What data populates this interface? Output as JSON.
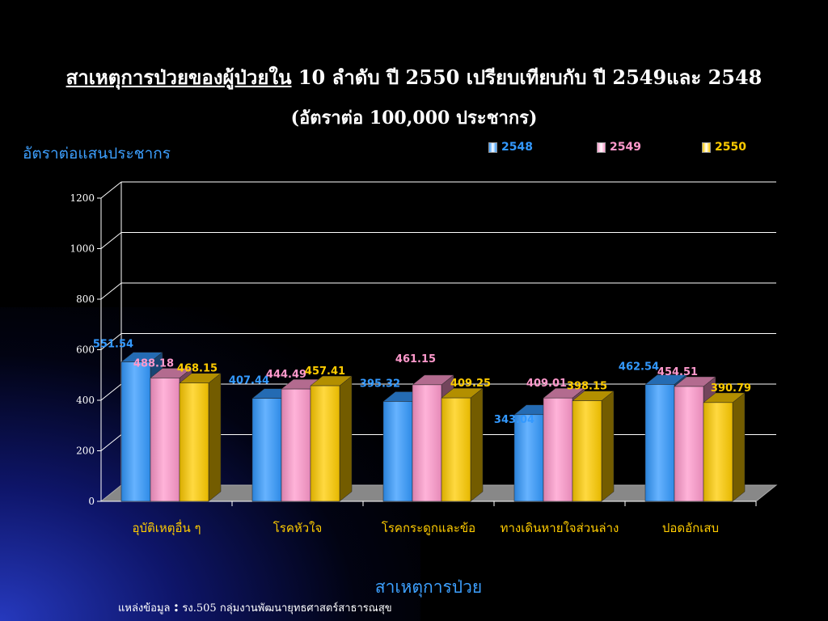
{
  "title": {
    "underlined": "สาเหตุการป่วยของผู้ป่วยใน",
    "rest": " 10 ลำดับ ปี 2550 เปรียบเทียบกับ ปี 2549และ 2548"
  },
  "subtitle": "(อัตราต่อ 100,000 ประชากร)",
  "source": {
    "prefix": "แหล่งข้อมูล",
    "colon": ":",
    "text": " รง.505 กลุ่มงานพัฒนายุทธศาสตร์สาธารณสุข"
  },
  "chart_data": {
    "type": "bar",
    "ylabel": "อัตราต่อแสนประชากร",
    "xlabel": "สาเหตุการป่วย",
    "categories": [
      "อุบัติเหตุอื่น ๆ",
      "โรคหัวใจ",
      "โรคกระดูกและข้อ",
      "ทางเดินหายใจส่วนล่าง",
      "ปอดอักเสบ"
    ],
    "series": [
      {
        "name": "2548",
        "values": [
          551.54,
          407.44,
          395.32,
          343.04,
          462.54
        ],
        "color": "#3399ff"
      },
      {
        "name": "2549",
        "values": [
          488.18,
          444.49,
          461.15,
          409.01,
          454.51
        ],
        "color": "#ff99cc"
      },
      {
        "name": "2550",
        "values": [
          468.15,
          457.41,
          409.25,
          398.15,
          390.79
        ],
        "color": "#ffcc00"
      }
    ],
    "ylim": [
      0,
      1200
    ],
    "yticks": [
      0,
      200,
      400,
      600,
      800,
      1000,
      1200
    ],
    "grid": true,
    "legend_position": "top-right",
    "value_label_colors": [
      "#3399ff",
      "#ff99cc",
      "#ffcc00"
    ],
    "tick_label_color": "#ffcc00"
  }
}
